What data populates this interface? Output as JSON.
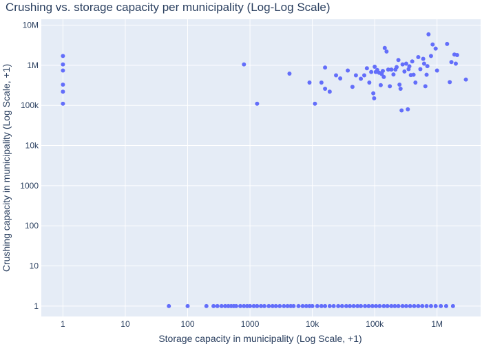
{
  "chart_data": {
    "type": "scatter",
    "title": "Crushing vs. storage capacity per municipality (Log-Log Scale)",
    "xlabel": "Storage capacity in municipality (Log Scale, +1)",
    "ylabel": "Crushing capacity in municipality (Log Scale, +1)",
    "x_scale": "log",
    "y_scale": "log",
    "xlim": [
      0.45,
      5000000
    ],
    "ylim": [
      0.55,
      14000000
    ],
    "x_ticks": [
      {
        "value": 1,
        "label": "1"
      },
      {
        "value": 10,
        "label": "10"
      },
      {
        "value": 100,
        "label": "100"
      },
      {
        "value": 1000,
        "label": "1000"
      },
      {
        "value": 10000,
        "label": "10k"
      },
      {
        "value": 100000,
        "label": "100k"
      },
      {
        "value": 1000000,
        "label": "1M"
      }
    ],
    "y_ticks": [
      {
        "value": 1,
        "label": "1"
      },
      {
        "value": 10,
        "label": "10"
      },
      {
        "value": 100,
        "label": "100"
      },
      {
        "value": 1000,
        "label": "1000"
      },
      {
        "value": 10000,
        "label": "10k"
      },
      {
        "value": 100000,
        "label": "100k"
      },
      {
        "value": 1000000,
        "label": "1M"
      },
      {
        "value": 10000000,
        "label": "10M"
      }
    ],
    "marker_color": "#636efa",
    "grid": true,
    "background": "#e5ecf6",
    "points": [
      [
        1,
        1700000
      ],
      [
        1,
        1050000
      ],
      [
        1,
        740000
      ],
      [
        1,
        330000
      ],
      [
        1,
        220000
      ],
      [
        1,
        110000
      ],
      [
        800,
        1050000
      ],
      [
        1300,
        110000
      ],
      [
        4300,
        620000
      ],
      [
        9000,
        370000
      ],
      [
        11000,
        110000
      ],
      [
        14000,
        370000
      ],
      [
        16000,
        880000
      ],
      [
        16000,
        260000
      ],
      [
        19000,
        220000
      ],
      [
        24000,
        560000
      ],
      [
        28000,
        470000
      ],
      [
        37000,
        740000
      ],
      [
        44000,
        290000
      ],
      [
        50000,
        560000
      ],
      [
        60000,
        460000
      ],
      [
        68000,
        560000
      ],
      [
        75000,
        840000
      ],
      [
        82000,
        370000
      ],
      [
        88000,
        680000
      ],
      [
        95000,
        200000
      ],
      [
        98000,
        150000
      ],
      [
        100000,
        920000
      ],
      [
        104000,
        680000
      ],
      [
        110000,
        760000
      ],
      [
        118000,
        650000
      ],
      [
        125000,
        320000
      ],
      [
        130000,
        600000
      ],
      [
        135000,
        720000
      ],
      [
        140000,
        510000
      ],
      [
        145000,
        2700000
      ],
      [
        155000,
        2200000
      ],
      [
        165000,
        780000
      ],
      [
        175000,
        300000
      ],
      [
        185000,
        780000
      ],
      [
        200000,
        590000
      ],
      [
        215000,
        780000
      ],
      [
        225000,
        900000
      ],
      [
        240000,
        1350000
      ],
      [
        250000,
        330000
      ],
      [
        260000,
        260000
      ],
      [
        270000,
        75000
      ],
      [
        280000,
        1050000
      ],
      [
        300000,
        700000
      ],
      [
        320000,
        1100000
      ],
      [
        340000,
        80000
      ],
      [
        350000,
        800000
      ],
      [
        360000,
        940000
      ],
      [
        380000,
        570000
      ],
      [
        400000,
        1250000
      ],
      [
        420000,
        580000
      ],
      [
        450000,
        370000
      ],
      [
        500000,
        1600000
      ],
      [
        540000,
        800000
      ],
      [
        600000,
        1450000
      ],
      [
        620000,
        1100000
      ],
      [
        650000,
        300000
      ],
      [
        680000,
        580000
      ],
      [
        700000,
        950000
      ],
      [
        730000,
        5900000
      ],
      [
        800000,
        1700000
      ],
      [
        850000,
        3300000
      ],
      [
        950000,
        2600000
      ],
      [
        1000000,
        740000
      ],
      [
        1450000,
        3400000
      ],
      [
        1600000,
        380000
      ],
      [
        1700000,
        1200000
      ],
      [
        1900000,
        1850000
      ],
      [
        2000000,
        1100000
      ],
      [
        2100000,
        1800000
      ],
      [
        2900000,
        440000
      ],
      [
        50,
        1
      ],
      [
        100,
        1
      ],
      [
        200,
        1
      ],
      [
        260,
        1
      ],
      [
        300,
        1
      ],
      [
        350,
        1
      ],
      [
        400,
        1
      ],
      [
        450,
        1
      ],
      [
        500,
        1
      ],
      [
        550,
        1
      ],
      [
        600,
        1
      ],
      [
        700,
        1
      ],
      [
        800,
        1
      ],
      [
        900,
        1
      ],
      [
        1000,
        1
      ],
      [
        1150,
        1
      ],
      [
        1300,
        1
      ],
      [
        1500,
        1
      ],
      [
        1700,
        1
      ],
      [
        2000,
        1
      ],
      [
        2300,
        1
      ],
      [
        2600,
        1
      ],
      [
        3000,
        1
      ],
      [
        3500,
        1
      ],
      [
        4000,
        1
      ],
      [
        4500,
        1
      ],
      [
        5000,
        1
      ],
      [
        6000,
        1
      ],
      [
        7000,
        1
      ],
      [
        8000,
        1
      ],
      [
        9000,
        1
      ],
      [
        10000,
        1
      ],
      [
        12000,
        1
      ],
      [
        14000,
        1
      ],
      [
        16000,
        1
      ],
      [
        19000,
        1
      ],
      [
        22000,
        1
      ],
      [
        26000,
        1
      ],
      [
        30000,
        1
      ],
      [
        35000,
        1
      ],
      [
        40000,
        1
      ],
      [
        46000,
        1
      ],
      [
        53000,
        1
      ],
      [
        60000,
        1
      ],
      [
        70000,
        1
      ],
      [
        80000,
        1
      ],
      [
        92000,
        1
      ],
      [
        105000,
        1
      ],
      [
        120000,
        1
      ],
      [
        140000,
        1
      ],
      [
        160000,
        1
      ],
      [
        185000,
        1
      ],
      [
        210000,
        1
      ],
      [
        240000,
        1
      ],
      [
        280000,
        1
      ],
      [
        320000,
        1
      ],
      [
        370000,
        1
      ],
      [
        430000,
        1
      ],
      [
        500000,
        1
      ],
      [
        580000,
        1
      ],
      [
        680000,
        1
      ],
      [
        800000,
        1
      ],
      [
        950000,
        1
      ],
      [
        1150000,
        1
      ],
      [
        1400000,
        1
      ],
      [
        1800000,
        1
      ]
    ]
  }
}
